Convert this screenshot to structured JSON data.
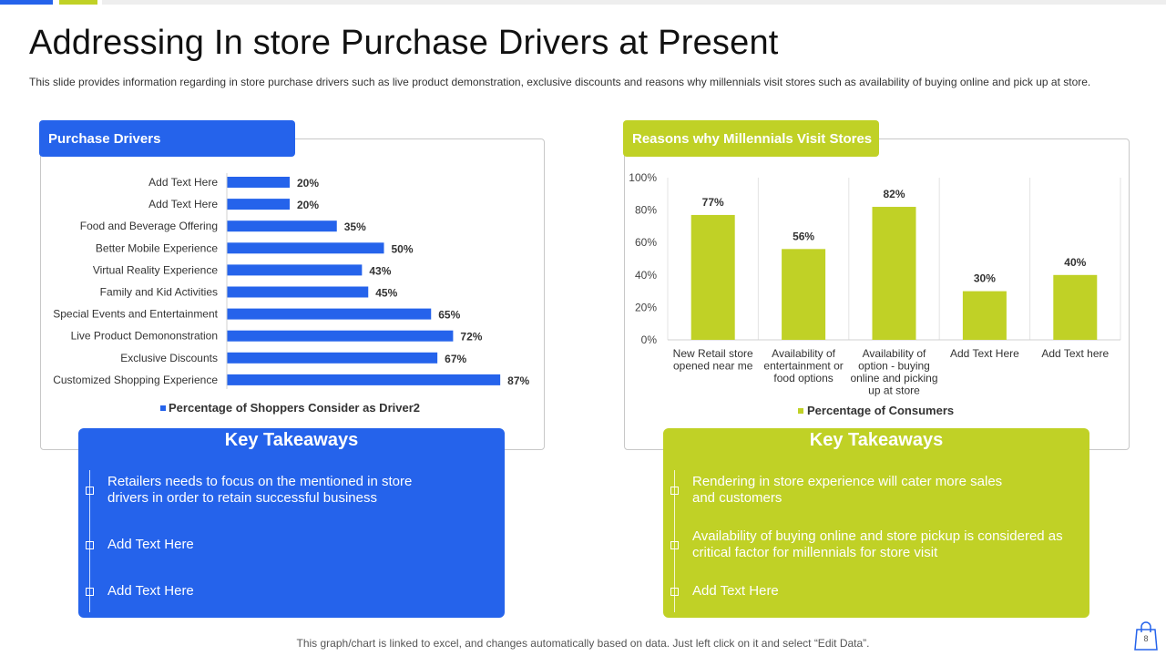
{
  "slide": {
    "title": "Addressing In store Purchase Drivers at Present",
    "description": "This slide provides information regarding in store purchase drivers  such as live product demonstration, exclusive discounts and reasons why millennials visit stores such as availability of buying online and pick up at store.",
    "footer": "This graph/chart is linked to excel, and changes automatically based on data. Just left click on it and select “Edit Data”.",
    "page_number": "8"
  },
  "colors": {
    "blue": "#2563eb",
    "green": "#c0d126"
  },
  "left_panel": {
    "title": "Purchase Drivers"
  },
  "right_panel": {
    "title": "Reasons why Millennials Visit Stores"
  },
  "chart_data": [
    {
      "type": "bar",
      "orientation": "horizontal",
      "categories": [
        "Add Text Here",
        "Add Text Here",
        "Food and Beverage Offering",
        "Better Mobile Experience",
        "Virtual Reality Experience",
        "Family and Kid Activities",
        "Special Events and Entertainment",
        "Live Product Demononstration",
        "Exclusive Discounts",
        "Customized Shopping Experience"
      ],
      "series": [
        {
          "name": "Percentage of Shoppers Consider as Driver2",
          "values": [
            20,
            20,
            35,
            50,
            43,
            45,
            65,
            72,
            67,
            87
          ]
        }
      ],
      "data_labels": [
        "20%",
        "20%",
        "35%",
        "50%",
        "43%",
        "45%",
        "65%",
        "72%",
        "67%",
        "87%"
      ],
      "xlim": [
        0,
        100
      ],
      "legend": "bottom"
    },
    {
      "type": "bar",
      "orientation": "vertical",
      "categories": [
        [
          "New Retail store",
          "opened near me"
        ],
        [
          "Availability of",
          "entertainment or",
          "food  options"
        ],
        [
          "Availability of",
          "option - buying",
          "online and picking",
          "up at store"
        ],
        [
          "Add Text Here"
        ],
        [
          "Add Text here"
        ]
      ],
      "series": [
        {
          "name": "Percentage of Consumers",
          "values": [
            77,
            56,
            82,
            30,
            40
          ]
        }
      ],
      "data_labels": [
        "77%",
        "56%",
        "82%",
        "30%",
        "40%"
      ],
      "ylim": [
        0,
        100
      ],
      "yticks": [
        "0%",
        "20%",
        "40%",
        "60%",
        "80%",
        "100%"
      ],
      "grid": "vertical category dividers",
      "legend": "bottom"
    }
  ],
  "takeaways_left": {
    "title": "Key Takeaways",
    "items": [
      "Retailers needs to focus on the mentioned in store drivers in order to retain successful business",
      "Add Text Here",
      "Add Text Here"
    ]
  },
  "takeaways_right": {
    "title": "Key Takeaways",
    "items": [
      "Rendering in store experience will cater more sales and customers",
      "Availability  of buying online and store pickup is considered as critical factor for millennials for store visit",
      "Add Text Here"
    ]
  }
}
